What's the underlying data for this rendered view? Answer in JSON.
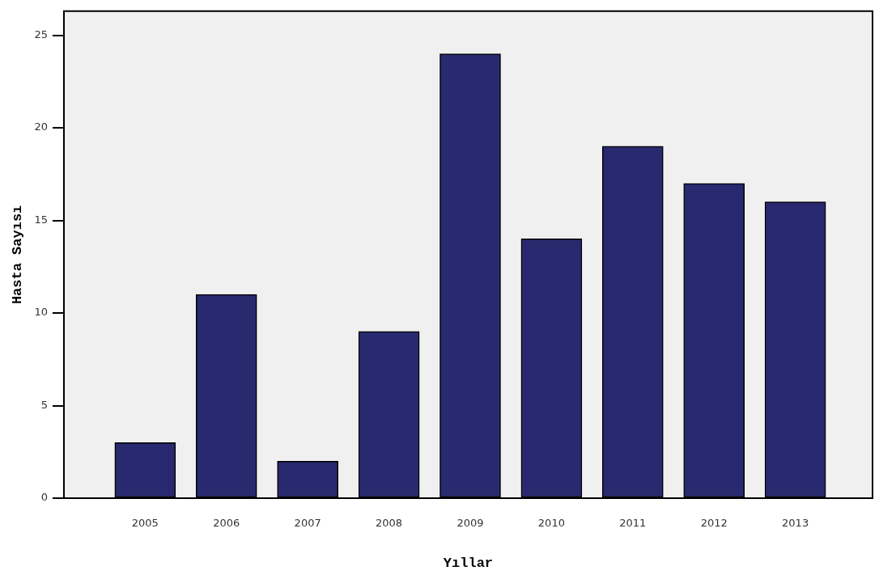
{
  "chart_data": {
    "type": "bar",
    "xlabel": "Yıllar",
    "ylabel": "Hasta Sayısı",
    "categories": [
      "2005",
      "2006",
      "2007",
      "2008",
      "2009",
      "2010",
      "2011",
      "2012",
      "2013"
    ],
    "values": [
      3,
      11,
      2,
      9,
      24,
      14,
      19,
      17,
      16
    ],
    "color": "#29296f",
    "ylim": [
      0,
      26.3
    ],
    "yticks": [
      0,
      5,
      10,
      15,
      20,
      25
    ],
    "grid": false,
    "legend": false
  }
}
